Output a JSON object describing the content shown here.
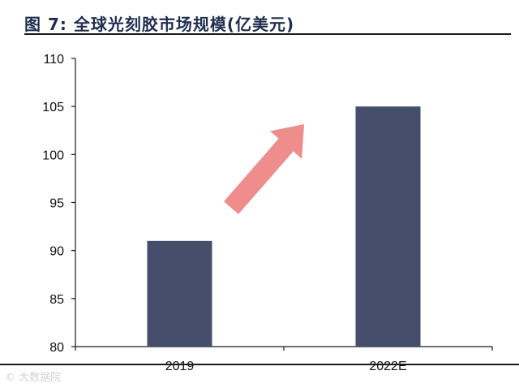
{
  "chart_data": {
    "type": "bar",
    "title": "图 7:  全球光刻胶市场规模(亿美元)",
    "categories": [
      "2019",
      "2022E"
    ],
    "values": [
      91,
      105
    ],
    "ylim": [
      80,
      110
    ],
    "yticks": [
      110,
      105,
      100,
      95,
      90,
      85,
      80
    ],
    "grid": false,
    "xlabel": "",
    "ylabel": ""
  },
  "colors": {
    "bar": "#454f6b",
    "arrow": "#ef8d8d",
    "title": "#1f2d4f",
    "axis": "#1a1a1a"
  },
  "annotation": {
    "icon": "up-right-arrow-icon"
  },
  "watermark": "© 大数据院"
}
